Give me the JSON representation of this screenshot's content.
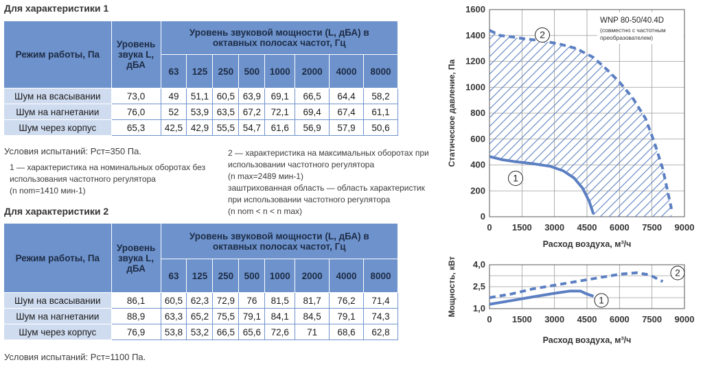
{
  "table1": {
    "title": "Для характеристики 1",
    "mode_header": "Режим работы, Па",
    "level_header": "Уровень звука L, дБА",
    "power_header": "Уровень звуковой мощности (L, дБА) в октавных полосах частот, Гц",
    "freqs": [
      "63",
      "125",
      "250",
      "500",
      "1000",
      "2000",
      "4000",
      "8000"
    ],
    "rows": [
      {
        "label": "Шум на всасывании",
        "level": "73,0",
        "values": [
          "49",
          "51,1",
          "60,5",
          "63,9",
          "69,1",
          "66,5",
          "64,4",
          "58,2"
        ]
      },
      {
        "label": "Шум на нагнетании",
        "level": "76,0",
        "values": [
          "52",
          "53,9",
          "63,5",
          "67,2",
          "72,1",
          "69,4",
          "67,4",
          "61,1"
        ]
      },
      {
        "label": "Шум через корпус",
        "level": "65,3",
        "values": [
          "42,5",
          "42,9",
          "55,5",
          "54,7",
          "61,6",
          "56,9",
          "57,9",
          "50,6"
        ]
      }
    ],
    "conditions": "Условия испытаний: Рст=350 Па."
  },
  "notes": {
    "n1_line1": "1 — характеристика на номинальных оборотах без",
    "n1_line2": "использования частотного регулятора",
    "n1_line3": "(n nom=1410 мин-1)",
    "n2_line1": "2 — характеристика на максимальных оборотах при",
    "n2_line2": "использовании частотного регулятора",
    "n2_line3": "(n max=2489 мин-1)",
    "n3_line1": "заштрихованная область — область характеристик",
    "n3_line2": "при использовании частотного регулятора",
    "n3_line3": "(n nom < n < n max)"
  },
  "table2": {
    "title": "Для характеристики 2",
    "mode_header": "Режим работы, Па",
    "level_header": "Уровень звука L, дБА",
    "power_header": "Уровень звуковой мощности (L, дБА) в октавных полосах частот, Гц",
    "freqs": [
      "63",
      "125",
      "250",
      "500",
      "1000",
      "2000",
      "4000",
      "8000"
    ],
    "rows": [
      {
        "label": "Шум на всасывании",
        "level": "86,1",
        "values": [
          "60,5",
          "62,3",
          "72,9",
          "76",
          "81,5",
          "81,7",
          "76,2",
          "71,4"
        ]
      },
      {
        "label": "Шум на нагнетании",
        "level": "88,9",
        "values": [
          "63,3",
          "65,2",
          "75,5",
          "79,1",
          "84,1",
          "84,5",
          "79,1",
          "74,3"
        ]
      },
      {
        "label": "Шум через корпус",
        "level": "76,9",
        "values": [
          "53,8",
          "53,2",
          "66,5",
          "65,6",
          "72,6",
          "71",
          "68,6",
          "62,8"
        ]
      }
    ],
    "conditions": "Условия испытаний: Рст=1100 Па."
  },
  "chart_data": [
    {
      "type": "line",
      "model": "WNP 80-50/40.4D",
      "model_note_line1": "(совместно с частотным",
      "model_note_line2": "преобразователем)",
      "xlabel": "Расход воздуха, м³/ч",
      "ylabel": "Статическое давление, Па",
      "xlim": [
        0,
        9000
      ],
      "ylim": [
        0,
        1600
      ],
      "xticks": [
        "0",
        "1500",
        "3000",
        "4500",
        "6000",
        "7500",
        "9000"
      ],
      "yticks": [
        "0",
        "200",
        "400",
        "600",
        "800",
        "1000",
        "1200",
        "1400",
        "1600"
      ],
      "grid": true,
      "colors": {
        "curve": "#5b7fc2",
        "hatch": "#5b7fc2"
      },
      "series": [
        {
          "name": "1",
          "style": "solid",
          "points": [
            [
              0,
              465
            ],
            [
              600,
              440
            ],
            [
              1200,
              425
            ],
            [
              2000,
              410
            ],
            [
              2800,
              390
            ],
            [
              3400,
              355
            ],
            [
              3900,
              300
            ],
            [
              4300,
              220
            ],
            [
              4600,
              120
            ],
            [
              4800,
              20
            ]
          ]
        },
        {
          "name": "2",
          "style": "dashed",
          "points": [
            [
              0,
              1440
            ],
            [
              500,
              1400
            ],
            [
              1000,
              1390
            ],
            [
              1600,
              1375
            ],
            [
              2400,
              1360
            ],
            [
              3200,
              1335
            ],
            [
              4000,
              1300
            ],
            [
              4800,
              1230
            ],
            [
              5400,
              1140
            ],
            [
              6000,
              1040
            ],
            [
              6600,
              920
            ],
            [
              7200,
              760
            ],
            [
              7600,
              580
            ],
            [
              8000,
              370
            ],
            [
              8400,
              60
            ]
          ]
        }
      ],
      "shaded_region": "между кривыми 1 и 2"
    },
    {
      "type": "line",
      "xlabel": "Расход воздуха, м³/ч",
      "ylabel": "Мощность, кВт",
      "xlim": [
        0,
        9000
      ],
      "ylim": [
        1.0,
        4.0
      ],
      "xticks": [
        "0",
        "1500",
        "3000",
        "4500",
        "6000",
        "7500",
        "9000"
      ],
      "yticks": [
        "1,0",
        "2,5",
        "4,0"
      ],
      "grid": true,
      "series": [
        {
          "name": "1",
          "style": "solid",
          "points": [
            [
              0,
              1.3
            ],
            [
              1000,
              1.55
            ],
            [
              2000,
              1.8
            ],
            [
              3000,
              2.05
            ],
            [
              3700,
              2.2
            ],
            [
              4200,
              2.2
            ],
            [
              4500,
              2.0
            ],
            [
              4800,
              1.85
            ]
          ]
        },
        {
          "name": "2",
          "style": "dashed",
          "points": [
            [
              0,
              1.75
            ],
            [
              1000,
              2.0
            ],
            [
              2000,
              2.35
            ],
            [
              3000,
              2.6
            ],
            [
              4000,
              2.85
            ],
            [
              5000,
              3.1
            ],
            [
              6000,
              3.35
            ],
            [
              6800,
              3.45
            ],
            [
              7400,
              3.3
            ],
            [
              8000,
              2.85
            ]
          ]
        }
      ]
    }
  ]
}
